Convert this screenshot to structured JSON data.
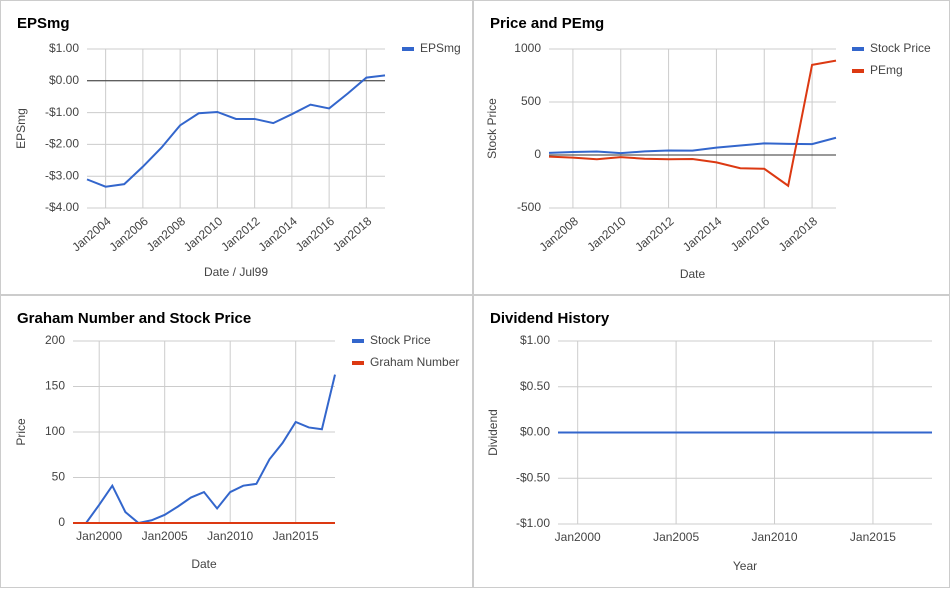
{
  "chart_data": [
    {
      "type": "line",
      "title": "EPSmg",
      "xlabel": "Date / Jul99",
      "ylabel": "EPSmg",
      "x": [
        2003,
        2004,
        2005,
        2006,
        2007,
        2008,
        2009,
        2010,
        2011,
        2012,
        2013,
        2014,
        2015,
        2016,
        2017,
        2018,
        2019
      ],
      "series": [
        {
          "name": "EPSmg",
          "color": "#3366cc",
          "values": [
            -3.1,
            -3.33,
            -3.25,
            -2.7,
            -2.1,
            -1.4,
            -1.02,
            -0.98,
            -1.2,
            -1.2,
            -1.33,
            -1.05,
            -0.75,
            -0.87,
            -0.4,
            0.1,
            0.17
          ]
        }
      ],
      "xlim": [
        2003,
        2019
      ],
      "xticks": [
        {
          "value": 2004,
          "label": "Jan2004"
        },
        {
          "value": 2006,
          "label": "Jan2006"
        },
        {
          "value": 2008,
          "label": "Jan2008"
        },
        {
          "value": 2010,
          "label": "Jan2010"
        },
        {
          "value": 2012,
          "label": "Jan2012"
        },
        {
          "value": 2014,
          "label": "Jan2014"
        },
        {
          "value": 2016,
          "label": "Jan2016"
        },
        {
          "value": 2018,
          "label": "Jan2018"
        }
      ],
      "ylim": [
        -4,
        1
      ],
      "yticks": [
        {
          "value": 1,
          "label": "$1.00"
        },
        {
          "value": 0,
          "label": "$0.00"
        },
        {
          "value": -1,
          "label": "-$1.00"
        },
        {
          "value": -2,
          "label": "-$2.00"
        },
        {
          "value": -3,
          "label": "-$3.00"
        },
        {
          "value": -4,
          "label": "-$4.00"
        }
      ],
      "legend": "right",
      "grid": true
    },
    {
      "type": "line",
      "title": "Price and PEmg",
      "xlabel": "Date",
      "ylabel": "Stock Price",
      "x": [
        2007,
        2008,
        2009,
        2010,
        2011,
        2012,
        2013,
        2014,
        2015,
        2016,
        2017,
        2018,
        2019
      ],
      "series": [
        {
          "name": "Stock Price",
          "color": "#3366cc",
          "values": [
            20,
            28,
            33,
            18,
            34,
            42,
            41,
            70,
            90,
            110,
            105,
            103,
            163
          ]
        },
        {
          "name": "PEmg",
          "color": "#dc3912",
          "values": [
            -15,
            -25,
            -40,
            -20,
            -35,
            -40,
            -38,
            -70,
            -125,
            -130,
            -290,
            850,
            890
          ]
        }
      ],
      "xlim": [
        2007,
        2019
      ],
      "xticks": [
        {
          "value": 2008,
          "label": "Jan2008"
        },
        {
          "value": 2010,
          "label": "Jan2010"
        },
        {
          "value": 2012,
          "label": "Jan2012"
        },
        {
          "value": 2014,
          "label": "Jan2014"
        },
        {
          "value": 2016,
          "label": "Jan2016"
        },
        {
          "value": 2018,
          "label": "Jan2018"
        }
      ],
      "ylim": [
        -500,
        1000
      ],
      "yticks": [
        1000,
        500,
        0,
        -500
      ],
      "legend": "right",
      "grid": true
    },
    {
      "type": "line",
      "title": "Graham Number and Stock Price",
      "xlabel": "Date",
      "ylabel": "Price",
      "x": [
        1998,
        1999,
        2000,
        2001,
        2002,
        2003,
        2004,
        2005,
        2006,
        2007,
        2008,
        2009,
        2010,
        2011,
        2012,
        2013,
        2014,
        2015,
        2016,
        2017,
        2018
      ],
      "series": [
        {
          "name": "Stock Price",
          "color": "#3366cc",
          "values": [
            0,
            0,
            20,
            41,
            12,
            0,
            3,
            9,
            18,
            28,
            34,
            16,
            34,
            41,
            43,
            70,
            88,
            111,
            105,
            103,
            163
          ]
        },
        {
          "name": "Graham Number",
          "color": "#dc3912",
          "values": [
            0,
            0,
            0,
            0,
            0,
            0,
            0,
            0,
            0,
            0,
            0,
            0,
            0,
            0,
            0,
            0,
            0,
            0,
            0,
            0,
            0
          ]
        }
      ],
      "xlim": [
        1998,
        2018
      ],
      "xticks": [
        {
          "value": 2000,
          "label": "Jan2000"
        },
        {
          "value": 2005,
          "label": "Jan2005"
        },
        {
          "value": 2010,
          "label": "Jan2010"
        },
        {
          "value": 2015,
          "label": "Jan2015"
        }
      ],
      "ylim": [
        0,
        200
      ],
      "yticks": [
        200,
        150,
        100,
        50,
        0
      ],
      "legend": "right",
      "grid": true
    },
    {
      "type": "line",
      "title": "Dividend History",
      "xlabel": "Year",
      "ylabel": "Dividend",
      "x": [
        1999,
        2000,
        2001,
        2002,
        2003,
        2004,
        2005,
        2006,
        2007,
        2008,
        2009,
        2010,
        2011,
        2012,
        2013,
        2014,
        2015,
        2016,
        2017,
        2018
      ],
      "series": [
        {
          "color": "#3366cc",
          "values": [
            0,
            0,
            0,
            0,
            0,
            0,
            0,
            0,
            0,
            0,
            0,
            0,
            0,
            0,
            0,
            0,
            0,
            0,
            0,
            0
          ]
        }
      ],
      "xlim": [
        1999,
        2018
      ],
      "xticks": [
        {
          "value": 2000,
          "label": "Jan2000"
        },
        {
          "value": 2005,
          "label": "Jan2005"
        },
        {
          "value": 2010,
          "label": "Jan2010"
        },
        {
          "value": 2015,
          "label": "Jan2015"
        }
      ],
      "ylim": [
        -1,
        1
      ],
      "yticks": [
        {
          "value": 1,
          "label": "$1.00"
        },
        {
          "value": 0.5,
          "label": "$0.50"
        },
        {
          "value": 0,
          "label": "$0.00"
        },
        {
          "value": -0.5,
          "label": "-$0.50"
        },
        {
          "value": -1,
          "label": "-$1.00"
        }
      ],
      "grid": true
    }
  ]
}
